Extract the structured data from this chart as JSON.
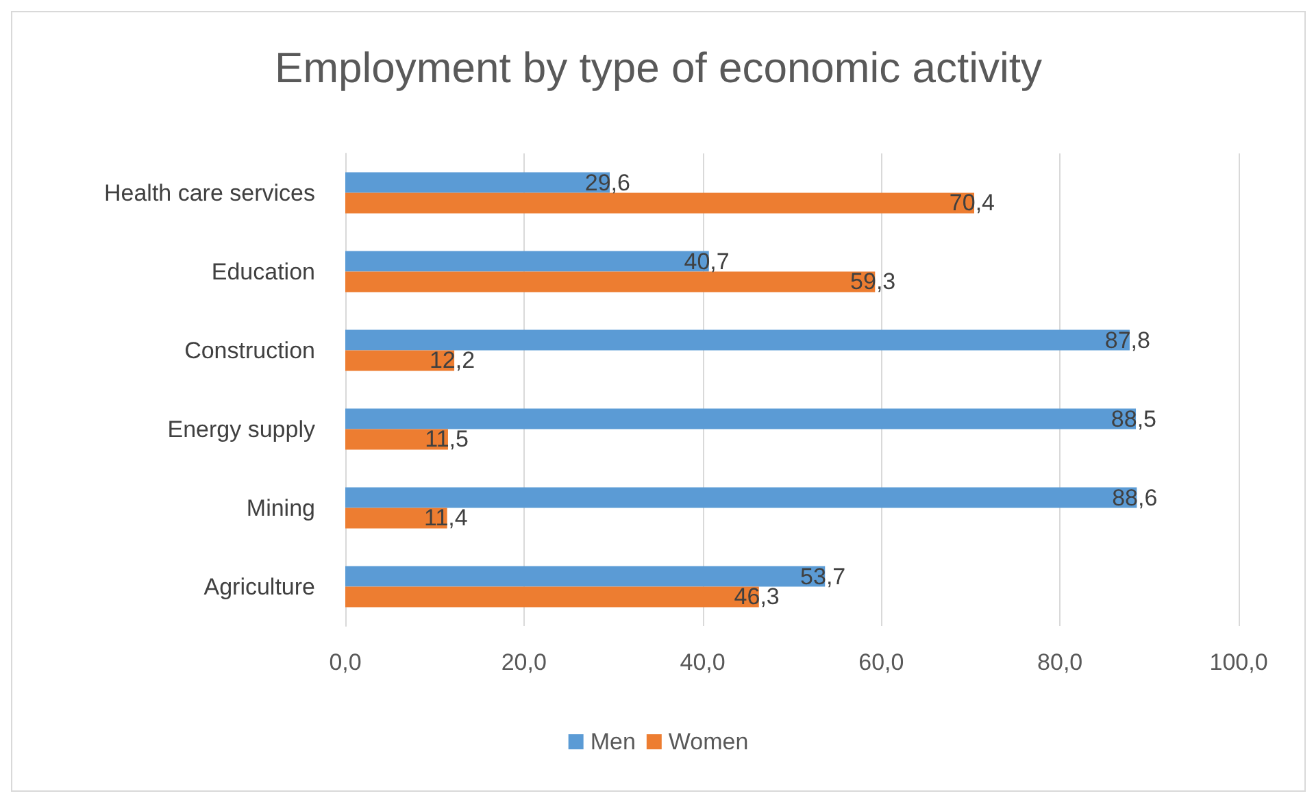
{
  "chart_data": {
    "type": "bar",
    "orientation": "horizontal",
    "title": "Employment by type of economic activity",
    "categories": [
      "Health care services",
      "Education",
      "Construction",
      "Energy supply",
      "Mining",
      "Agriculture"
    ],
    "series": [
      {
        "name": "Men",
        "color": "#5b9bd5",
        "values": [
          29.6,
          40.7,
          87.8,
          88.5,
          88.6,
          53.7
        ],
        "value_labels": [
          "29,6",
          "40,7",
          "87,8",
          "88,5",
          "88,6",
          "53,7"
        ]
      },
      {
        "name": "Women",
        "color": "#ed7d31",
        "values": [
          70.4,
          59.3,
          12.2,
          11.5,
          11.4,
          46.3
        ],
        "value_labels": [
          "70,4",
          "59,3",
          "12,2",
          "11,5",
          "11,4",
          "46,3"
        ]
      }
    ],
    "xlim": [
      0,
      100
    ],
    "xticks": [
      {
        "value": 0,
        "label": "0,0"
      },
      {
        "value": 20,
        "label": "20,0"
      },
      {
        "value": 40,
        "label": "40,0"
      },
      {
        "value": 60,
        "label": "60,0"
      },
      {
        "value": 80,
        "label": "80,0"
      },
      {
        "value": 100,
        "label": "100,0"
      }
    ],
    "grid": "x",
    "legend": "bottom"
  }
}
